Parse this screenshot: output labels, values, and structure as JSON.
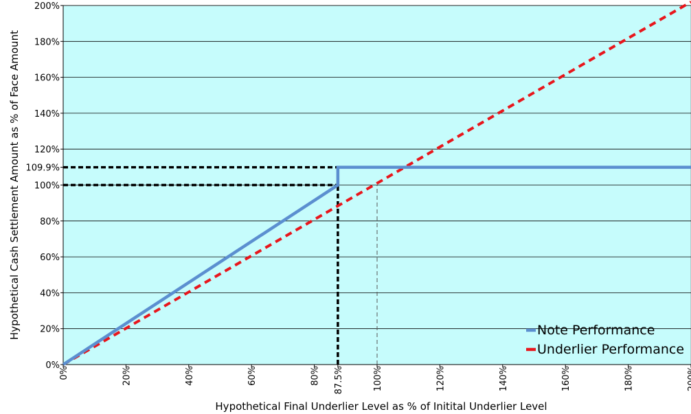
{
  "chart_data": {
    "type": "line",
    "xlabel": "Hypothetical Final Underlier Level as % of Initital Underlier Level",
    "ylabel": "Hypothetical Cash Settlement Amount as % of Face Amount",
    "xlim": [
      0,
      200
    ],
    "ylim": [
      0,
      200
    ],
    "x_ticks": [
      {
        "value": 0,
        "label": "0%"
      },
      {
        "value": 20,
        "label": "20%"
      },
      {
        "value": 40,
        "label": "40%"
      },
      {
        "value": 60,
        "label": "60%"
      },
      {
        "value": 80,
        "label": "80%"
      },
      {
        "value": 87.5,
        "label": "87.5%"
      },
      {
        "value": 100,
        "label": "100%"
      },
      {
        "value": 120,
        "label": "120%"
      },
      {
        "value": 140,
        "label": "140%"
      },
      {
        "value": 160,
        "label": "160%"
      },
      {
        "value": 180,
        "label": "180%"
      },
      {
        "value": 200,
        "label": "200%"
      }
    ],
    "y_ticks": [
      {
        "value": 0,
        "label": "0%"
      },
      {
        "value": 20,
        "label": "20%"
      },
      {
        "value": 40,
        "label": "40%"
      },
      {
        "value": 60,
        "label": "60%"
      },
      {
        "value": 80,
        "label": "80%"
      },
      {
        "value": 100,
        "label": "100%"
      },
      {
        "value": 109.9,
        "label": "109.9%"
      },
      {
        "value": 120,
        "label": "120%"
      },
      {
        "value": 140,
        "label": "140%"
      },
      {
        "value": 160,
        "label": "160%"
      },
      {
        "value": 180,
        "label": "180%"
      },
      {
        "value": 200,
        "label": "200%"
      }
    ],
    "gridlines_y": [
      20,
      40,
      60,
      80,
      100,
      120,
      140,
      160,
      180,
      200
    ],
    "series": [
      {
        "name": "Note Performance",
        "color": "#5B8FD0",
        "style": "solid",
        "points": [
          [
            0,
            0
          ],
          [
            87.5,
            100
          ],
          [
            87.5,
            109.9
          ],
          [
            200,
            109.9
          ]
        ]
      },
      {
        "name": "Underlier Performance",
        "color": "#E8161C",
        "style": "dashed",
        "points": [
          [
            0,
            0
          ],
          [
            200,
            202
          ]
        ]
      }
    ],
    "reference_lines": [
      {
        "kind": "horizontal",
        "y": 109.9,
        "x_from": 0,
        "x_to": 87.5,
        "style": "bold-dashed",
        "color": "#000000"
      },
      {
        "kind": "horizontal",
        "y": 100,
        "x_from": 0,
        "x_to": 87.5,
        "style": "bold-dashed",
        "color": "#000000"
      },
      {
        "kind": "vertical",
        "x": 87.5,
        "y_from": 0,
        "y_to": 100,
        "style": "bold-dashed",
        "color": "#000000"
      },
      {
        "kind": "vertical",
        "x": 100,
        "y_from": 0,
        "y_to": 100,
        "style": "thin-dashed",
        "color": "#555555"
      }
    ],
    "plot_background": "#C6FCFC",
    "grid": true,
    "legend_position": "bottom-right"
  }
}
